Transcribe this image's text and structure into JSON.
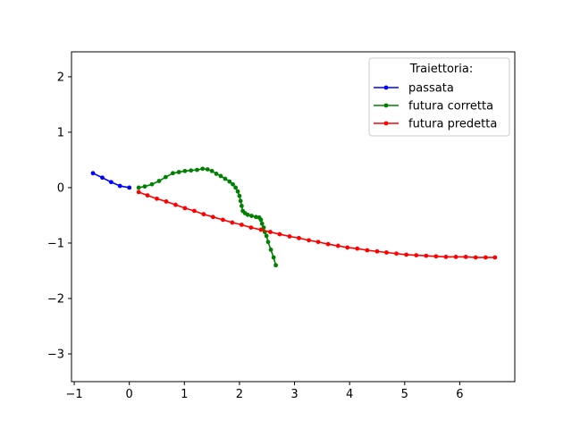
{
  "chart_data": {
    "type": "line",
    "title": "",
    "xlabel": "",
    "ylabel": "",
    "xlim": [
      -1.05,
      7.0
    ],
    "ylim": [
      -3.5,
      2.45
    ],
    "xticks": [
      -1,
      0,
      1,
      2,
      3,
      4,
      5,
      6
    ],
    "yticks": [
      2,
      1,
      0,
      -1,
      -2,
      -3
    ],
    "grid": false,
    "legend": {
      "placement": "top-right",
      "title": "Traiettoria:"
    },
    "series": [
      {
        "name": "passata",
        "color": "#0000ff",
        "marker": "circle",
        "points": [
          [
            -0.66,
            0.26
          ],
          [
            -0.49,
            0.18
          ],
          [
            -0.33,
            0.1
          ],
          [
            -0.17,
            0.03
          ],
          [
            0.0,
            0.0
          ]
        ]
      },
      {
        "name": "futura corretta",
        "color": "#008000",
        "marker": "circle",
        "points": [
          [
            0.17,
            0.0
          ],
          [
            0.28,
            0.02
          ],
          [
            0.41,
            0.06
          ],
          [
            0.54,
            0.12
          ],
          [
            0.66,
            0.19
          ],
          [
            0.79,
            0.26
          ],
          [
            0.9,
            0.28
          ],
          [
            1.01,
            0.3
          ],
          [
            1.12,
            0.31
          ],
          [
            1.23,
            0.32
          ],
          [
            1.33,
            0.34
          ],
          [
            1.42,
            0.33
          ],
          [
            1.5,
            0.3
          ],
          [
            1.58,
            0.25
          ],
          [
            1.66,
            0.21
          ],
          [
            1.74,
            0.16
          ],
          [
            1.82,
            0.11
          ],
          [
            1.88,
            0.06
          ],
          [
            1.93,
            0.0
          ],
          [
            1.97,
            -0.07
          ],
          [
            2.0,
            -0.15
          ],
          [
            2.02,
            -0.24
          ],
          [
            2.04,
            -0.33
          ],
          [
            2.06,
            -0.42
          ],
          [
            2.1,
            -0.46
          ],
          [
            2.15,
            -0.49
          ],
          [
            2.22,
            -0.51
          ],
          [
            2.3,
            -0.53
          ],
          [
            2.36,
            -0.54
          ],
          [
            2.39,
            -0.58
          ],
          [
            2.41,
            -0.65
          ],
          [
            2.44,
            -0.72
          ],
          [
            2.46,
            -0.8
          ],
          [
            2.49,
            -0.87
          ],
          [
            2.52,
            -0.98
          ],
          [
            2.57,
            -1.12
          ],
          [
            2.62,
            -1.26
          ],
          [
            2.66,
            -1.4
          ]
        ]
      },
      {
        "name": "futura predetta",
        "color": "#ff0000",
        "marker": "circle",
        "points": [
          [
            0.17,
            -0.08
          ],
          [
            0.33,
            -0.14
          ],
          [
            0.5,
            -0.2
          ],
          [
            0.67,
            -0.25
          ],
          [
            0.84,
            -0.31
          ],
          [
            1.01,
            -0.37
          ],
          [
            1.18,
            -0.42
          ],
          [
            1.35,
            -0.48
          ],
          [
            1.52,
            -0.53
          ],
          [
            1.7,
            -0.58
          ],
          [
            1.87,
            -0.63
          ],
          [
            2.04,
            -0.67
          ],
          [
            2.21,
            -0.72
          ],
          [
            2.39,
            -0.76
          ],
          [
            2.56,
            -0.8
          ],
          [
            2.73,
            -0.84
          ],
          [
            2.91,
            -0.88
          ],
          [
            3.08,
            -0.91
          ],
          [
            3.26,
            -0.95
          ],
          [
            3.43,
            -0.98
          ],
          [
            3.61,
            -1.02
          ],
          [
            3.79,
            -1.05
          ],
          [
            3.96,
            -1.08
          ],
          [
            4.14,
            -1.1
          ],
          [
            4.32,
            -1.13
          ],
          [
            4.5,
            -1.15
          ],
          [
            4.67,
            -1.17
          ],
          [
            4.85,
            -1.19
          ],
          [
            5.03,
            -1.21
          ],
          [
            5.21,
            -1.22
          ],
          [
            5.39,
            -1.23
          ],
          [
            5.57,
            -1.24
          ],
          [
            5.75,
            -1.25
          ],
          [
            5.93,
            -1.25
          ],
          [
            6.11,
            -1.25
          ],
          [
            6.29,
            -1.26
          ],
          [
            6.47,
            -1.26
          ],
          [
            6.64,
            -1.26
          ]
        ]
      }
    ]
  }
}
